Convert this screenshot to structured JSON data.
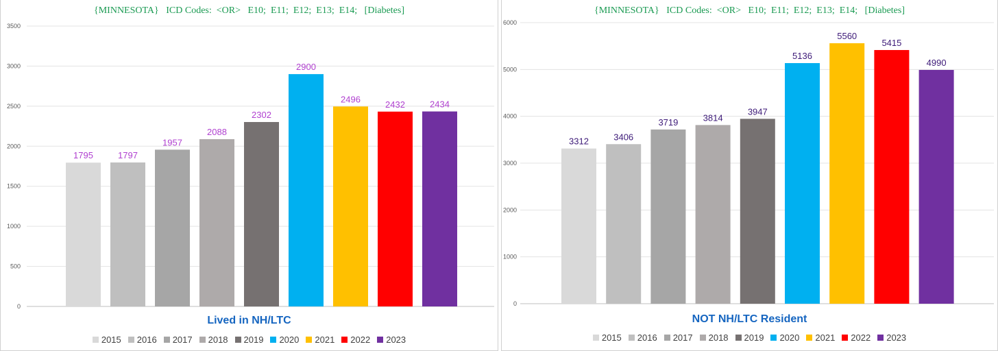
{
  "chart_data": [
    {
      "type": "bar",
      "title": "{MINNESOTA}   ICD Codes:  <OR>   E10;  E11;  E12;  E13;  E14;   [Diabetes]",
      "subtitle": "Lived in NH/LTC",
      "categories": [
        "2015",
        "2016",
        "2017",
        "2018",
        "2019",
        "2020",
        "2021",
        "2022",
        "2023"
      ],
      "values": [
        1795,
        1797,
        1957,
        2088,
        2302,
        2900,
        2496,
        2432,
        2434
      ],
      "colors": [
        "#d9d9d9",
        "#bfbfbf",
        "#a6a6a6",
        "#aeaaaa",
        "#767171",
        "#00b0f0",
        "#ffc000",
        "#ff0000",
        "#7030a0"
      ],
      "label_color": "#b040d0",
      "yticks": [
        0,
        500,
        1000,
        1500,
        2000,
        2500,
        3000,
        3500
      ],
      "ylim": [
        0,
        3500
      ],
      "legend": "bottom"
    },
    {
      "type": "bar",
      "title": "{MINNESOTA}   ICD Codes:  <OR>   E10;  E11;  E12;  E13;  E14;   [Diabetes]",
      "subtitle": "NOT NH/LTC Resident",
      "categories": [
        "2015",
        "2016",
        "2017",
        "2018",
        "2019",
        "2020",
        "2021",
        "2022",
        "2023"
      ],
      "values": [
        3312,
        3406,
        3719,
        3814,
        3947,
        5136,
        5560,
        5415,
        4990
      ],
      "colors": [
        "#d9d9d9",
        "#bfbfbf",
        "#a6a6a6",
        "#aeaaaa",
        "#767171",
        "#00b0f0",
        "#ffc000",
        "#ff0000",
        "#7030a0"
      ],
      "label_color": "#3d1a78",
      "yticks": [
        0,
        1000,
        2000,
        3000,
        4000,
        5000,
        6000
      ],
      "ylim": [
        0,
        6000
      ],
      "legend": "bottom"
    }
  ]
}
